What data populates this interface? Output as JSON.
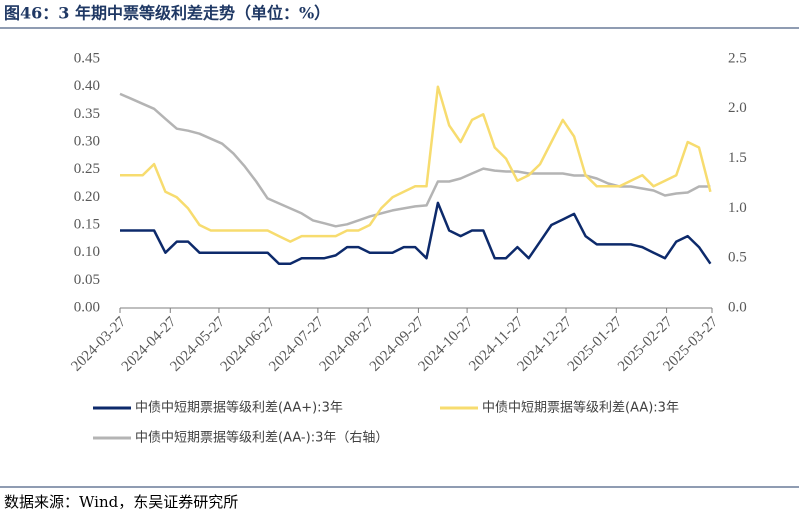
{
  "title": "图46：3 年期中票等级利差走势（单位：%）",
  "source": "数据来源：Wind，东吴证券研究所",
  "chart_data": {
    "type": "line",
    "x": [
      "2024-03-27",
      "2024-04-03",
      "2024-04-10",
      "2024-04-17",
      "2024-04-24",
      "2024-05-01",
      "2024-05-08",
      "2024-05-15",
      "2024-05-22",
      "2024-05-29",
      "2024-06-05",
      "2024-06-12",
      "2024-06-19",
      "2024-06-26",
      "2024-07-03",
      "2024-07-10",
      "2024-07-17",
      "2024-07-24",
      "2024-07-31",
      "2024-08-07",
      "2024-08-14",
      "2024-08-21",
      "2024-08-28",
      "2024-09-04",
      "2024-09-11",
      "2024-09-18",
      "2024-09-25",
      "2024-10-02",
      "2024-10-09",
      "2024-10-16",
      "2024-10-23",
      "2024-10-30",
      "2024-11-06",
      "2024-11-13",
      "2024-11-20",
      "2024-11-27",
      "2024-12-04",
      "2024-12-11",
      "2024-12-18",
      "2024-12-25",
      "2025-01-01",
      "2025-01-08",
      "2025-01-15",
      "2025-01-22",
      "2025-01-29",
      "2025-02-05",
      "2025-02-12",
      "2025-02-19",
      "2025-02-26",
      "2025-03-05",
      "2025-03-12",
      "2025-03-19",
      "2025-03-26"
    ],
    "xlim": [
      "2024-03-27",
      "2025-03-27"
    ],
    "xticks": [
      "2024-03-27",
      "2024-04-27",
      "2024-05-27",
      "2024-06-27",
      "2024-07-27",
      "2024-08-27",
      "2024-09-27",
      "2024-10-27",
      "2024-11-27",
      "2024-12-27",
      "2025-01-27",
      "2025-02-27",
      "2025-03-27"
    ],
    "ylim": [
      0,
      0.45
    ],
    "yticks": [
      {
        "value": 0,
        "label": "0.00"
      },
      0.05,
      {
        "value": 0.1,
        "label": "0.10"
      },
      0.15,
      {
        "value": 0.2,
        "label": "0.20"
      },
      0.25,
      {
        "value": 0.3,
        "label": "0.30"
      },
      0.35,
      {
        "value": 0.4,
        "label": "0.40"
      },
      0.45
    ],
    "y2lim": [
      0,
      2.5
    ],
    "y2ticks": [
      {
        "value": 0,
        "label": "0.0"
      },
      0.5,
      {
        "value": 1,
        "label": "1.0"
      },
      1.5,
      {
        "value": 2,
        "label": "2.0"
      },
      2.5
    ],
    "series": [
      {
        "name": "中债中短期票据等级利差(AA+):3年",
        "color": "#0d2a6b",
        "values": [
          0.14,
          0.14,
          0.14,
          0.14,
          0.1,
          0.12,
          0.12,
          0.1,
          0.1,
          0.1,
          0.1,
          0.1,
          0.1,
          0.1,
          0.08,
          0.08,
          0.09,
          0.09,
          0.09,
          0.095,
          0.11,
          0.11,
          0.1,
          0.1,
          0.1,
          0.11,
          0.11,
          0.09,
          0.19,
          0.14,
          0.13,
          0.14,
          0.14,
          0.09,
          0.09,
          0.11,
          0.09,
          0.12,
          0.15,
          0.16,
          0.17,
          0.13,
          0.115,
          0.115,
          0.115,
          0.115,
          0.11,
          0.1,
          0.09,
          0.12,
          0.13,
          0.11,
          0.08
        ]
      },
      {
        "name": "中债中短期票据等级利差(AA):3年",
        "color": "#f7dc6f",
        "values": [
          0.24,
          0.24,
          0.24,
          0.26,
          0.21,
          0.2,
          0.18,
          0.15,
          0.14,
          0.14,
          0.14,
          0.14,
          0.14,
          0.14,
          0.13,
          0.12,
          0.13,
          0.13,
          0.13,
          0.13,
          0.14,
          0.14,
          0.15,
          0.18,
          0.2,
          0.21,
          0.22,
          0.22,
          0.4,
          0.33,
          0.3,
          0.34,
          0.35,
          0.29,
          0.27,
          0.23,
          0.24,
          0.26,
          0.3,
          0.34,
          0.31,
          0.24,
          0.22,
          0.22,
          0.22,
          0.23,
          0.24,
          0.22,
          0.23,
          0.24,
          0.3,
          0.29,
          0.21
        ]
      },
      {
        "name": "中债中短期票据等级利差(AA-):3年（右轴）",
        "color": "#b4b4b4",
        "axis": "y2",
        "values": [
          2.15,
          2.1,
          2.05,
          2.0,
          1.9,
          1.8,
          1.78,
          1.75,
          1.7,
          1.65,
          1.55,
          1.42,
          1.27,
          1.1,
          1.05,
          1.0,
          0.95,
          0.88,
          0.85,
          0.82,
          0.84,
          0.88,
          0.92,
          0.95,
          0.98,
          1.0,
          1.02,
          1.03,
          1.27,
          1.27,
          1.3,
          1.35,
          1.4,
          1.38,
          1.37,
          1.37,
          1.35,
          1.35,
          1.35,
          1.35,
          1.33,
          1.33,
          1.3,
          1.25,
          1.22,
          1.22,
          1.2,
          1.18,
          1.13,
          1.15,
          1.16,
          1.22,
          1.22
        ]
      }
    ]
  }
}
